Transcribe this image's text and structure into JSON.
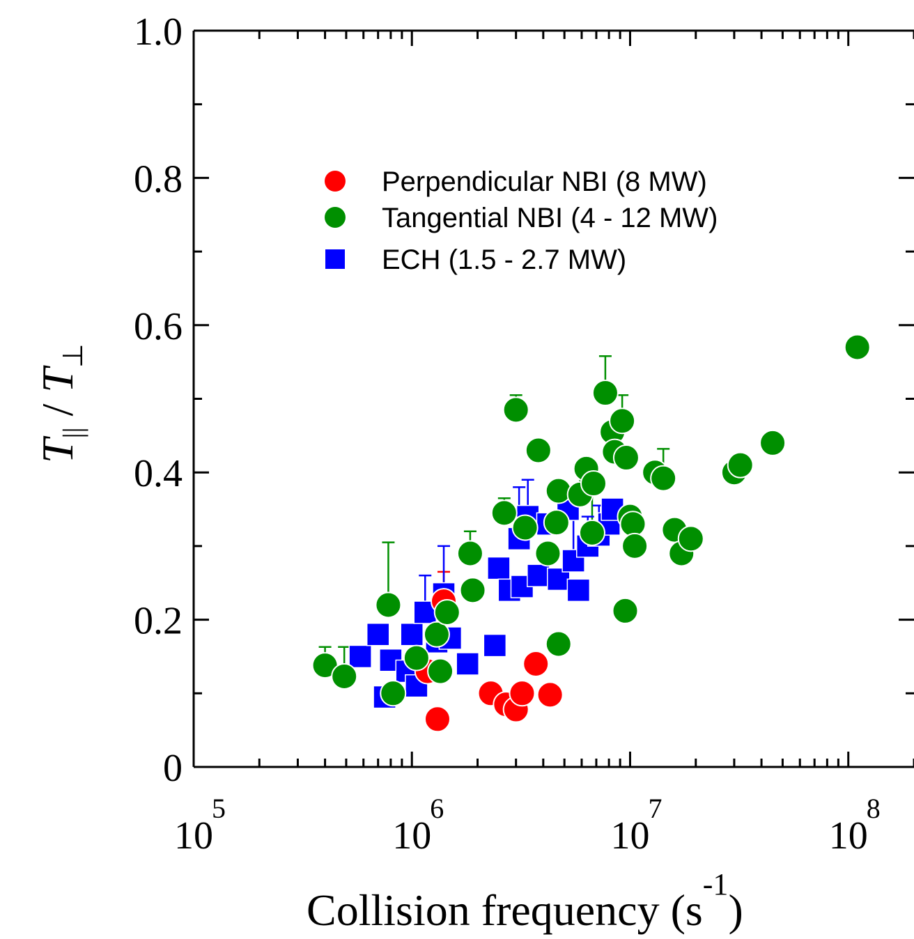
{
  "chart_data": {
    "type": "scatter",
    "x_scale": "log",
    "xlim": [
      100000,
      200000000
    ],
    "ylim": [
      0,
      1.0
    ],
    "x_ticks": [
      {
        "value": 100000,
        "base": "10",
        "exp": "5"
      },
      {
        "value": 1000000,
        "base": "10",
        "exp": "6"
      },
      {
        "value": 10000000,
        "base": "10",
        "exp": "7"
      },
      {
        "value": 100000000,
        "base": "10",
        "exp": "8"
      }
    ],
    "y_ticks": [
      {
        "value": 0,
        "label": "0"
      },
      {
        "value": 0.2,
        "label": "0.2"
      },
      {
        "value": 0.4,
        "label": "0.4"
      },
      {
        "value": 0.6,
        "label": "0.6"
      },
      {
        "value": 0.8,
        "label": "0.8"
      },
      {
        "value": 1.0,
        "label": "1.0"
      }
    ],
    "xlabel": {
      "text": "Collision frequency (s",
      "sup": "-1",
      "close": ")"
    },
    "ylabel": {
      "T": "T",
      "par_sub": "||",
      "slash": " / ",
      "T2": "T",
      "perp_sub": "⊥"
    },
    "legend_placement": "upper-left inside plot",
    "series": [
      {
        "name": "Perpendicular NBI (8 MW)",
        "marker": "circle",
        "color": "#ff0000",
        "points": [
          {
            "x": 1310000,
            "y": 0.065
          },
          {
            "x": 1180000,
            "y": 0.13
          },
          {
            "x": 1400000,
            "y": 0.225,
            "err": 0.04
          },
          {
            "x": 2300000,
            "y": 0.1
          },
          {
            "x": 2700000,
            "y": 0.085
          },
          {
            "x": 3000000,
            "y": 0.078
          },
          {
            "x": 3200000,
            "y": 0.1
          },
          {
            "x": 3700000,
            "y": 0.14
          },
          {
            "x": 4300000,
            "y": 0.098
          }
        ]
      },
      {
        "name": "Tangential NBI (4 - 12 MW)",
        "marker": "circle",
        "color": "#008f00",
        "points": [
          {
            "x": 400000,
            "y": 0.138,
            "err": 0.025
          },
          {
            "x": 490000,
            "y": 0.123,
            "err": 0.04
          },
          {
            "x": 780000,
            "y": 0.22,
            "err": 0.085
          },
          {
            "x": 820000,
            "y": 0.1
          },
          {
            "x": 1050000,
            "y": 0.148
          },
          {
            "x": 1300000,
            "y": 0.18
          },
          {
            "x": 1350000,
            "y": 0.13
          },
          {
            "x": 1450000,
            "y": 0.21
          },
          {
            "x": 1850000,
            "y": 0.29,
            "err": 0.03
          },
          {
            "x": 1900000,
            "y": 0.24
          },
          {
            "x": 2650000,
            "y": 0.345,
            "err": 0.02
          },
          {
            "x": 3000000,
            "y": 0.485,
            "err": 0.02
          },
          {
            "x": 3300000,
            "y": 0.325
          },
          {
            "x": 3800000,
            "y": 0.43
          },
          {
            "x": 4200000,
            "y": 0.29
          },
          {
            "x": 4600000,
            "y": 0.332
          },
          {
            "x": 4700000,
            "y": 0.375
          },
          {
            "x": 4700000,
            "y": 0.167
          },
          {
            "x": 5900000,
            "y": 0.37,
            "err": 0.04
          },
          {
            "x": 6300000,
            "y": 0.405
          },
          {
            "x": 6700000,
            "y": 0.318,
            "err": 0.07
          },
          {
            "x": 6800000,
            "y": 0.385
          },
          {
            "x": 7700000,
            "y": 0.508,
            "err": 0.05
          },
          {
            "x": 8300000,
            "y": 0.455
          },
          {
            "x": 8500000,
            "y": 0.428,
            "err": 0.04
          },
          {
            "x": 9200000,
            "y": 0.47,
            "err": 0.035
          },
          {
            "x": 9600000,
            "y": 0.42
          },
          {
            "x": 9500000,
            "y": 0.212
          },
          {
            "x": 10000000,
            "y": 0.34
          },
          {
            "x": 10300000,
            "y": 0.33
          },
          {
            "x": 10500000,
            "y": 0.3
          },
          {
            "x": 13000000,
            "y": 0.4
          },
          {
            "x": 14200000,
            "y": 0.392,
            "err": 0.04
          },
          {
            "x": 16000000,
            "y": 0.322
          },
          {
            "x": 17200000,
            "y": 0.29
          },
          {
            "x": 19000000,
            "y": 0.31
          },
          {
            "x": 30000000,
            "y": 0.4
          },
          {
            "x": 32000000,
            "y": 0.41
          },
          {
            "x": 45000000,
            "y": 0.44
          },
          {
            "x": 110000000,
            "y": 0.57
          }
        ]
      },
      {
        "name": "ECH (1.5 - 2.7 MW)",
        "marker": "square",
        "color": "#0000ff",
        "points": [
          {
            "x": 580000,
            "y": 0.15
          },
          {
            "x": 700000,
            "y": 0.18
          },
          {
            "x": 750000,
            "y": 0.095
          },
          {
            "x": 800000,
            "y": 0.145
          },
          {
            "x": 950000,
            "y": 0.13
          },
          {
            "x": 1000000,
            "y": 0.18
          },
          {
            "x": 1050000,
            "y": 0.11,
            "err": 0.08
          },
          {
            "x": 1150000,
            "y": 0.21,
            "err": 0.05
          },
          {
            "x": 1300000,
            "y": 0.17
          },
          {
            "x": 1400000,
            "y": 0.235,
            "err": 0.065
          },
          {
            "x": 1500000,
            "y": 0.175
          },
          {
            "x": 1800000,
            "y": 0.14
          },
          {
            "x": 2400000,
            "y": 0.165
          },
          {
            "x": 2500000,
            "y": 0.27
          },
          {
            "x": 2800000,
            "y": 0.24
          },
          {
            "x": 3100000,
            "y": 0.31,
            "err": 0.07
          },
          {
            "x": 3200000,
            "y": 0.245
          },
          {
            "x": 3400000,
            "y": 0.34,
            "err": 0.05
          },
          {
            "x": 3800000,
            "y": 0.26
          },
          {
            "x": 4200000,
            "y": 0.33
          },
          {
            "x": 4700000,
            "y": 0.255
          },
          {
            "x": 5200000,
            "y": 0.35
          },
          {
            "x": 5500000,
            "y": 0.28,
            "err": 0.08
          },
          {
            "x": 5800000,
            "y": 0.24
          },
          {
            "x": 6400000,
            "y": 0.3,
            "err": 0.04
          },
          {
            "x": 7200000,
            "y": 0.315,
            "err": 0.04
          },
          {
            "x": 8000000,
            "y": 0.33
          },
          {
            "x": 8300000,
            "y": 0.35
          }
        ]
      }
    ]
  }
}
